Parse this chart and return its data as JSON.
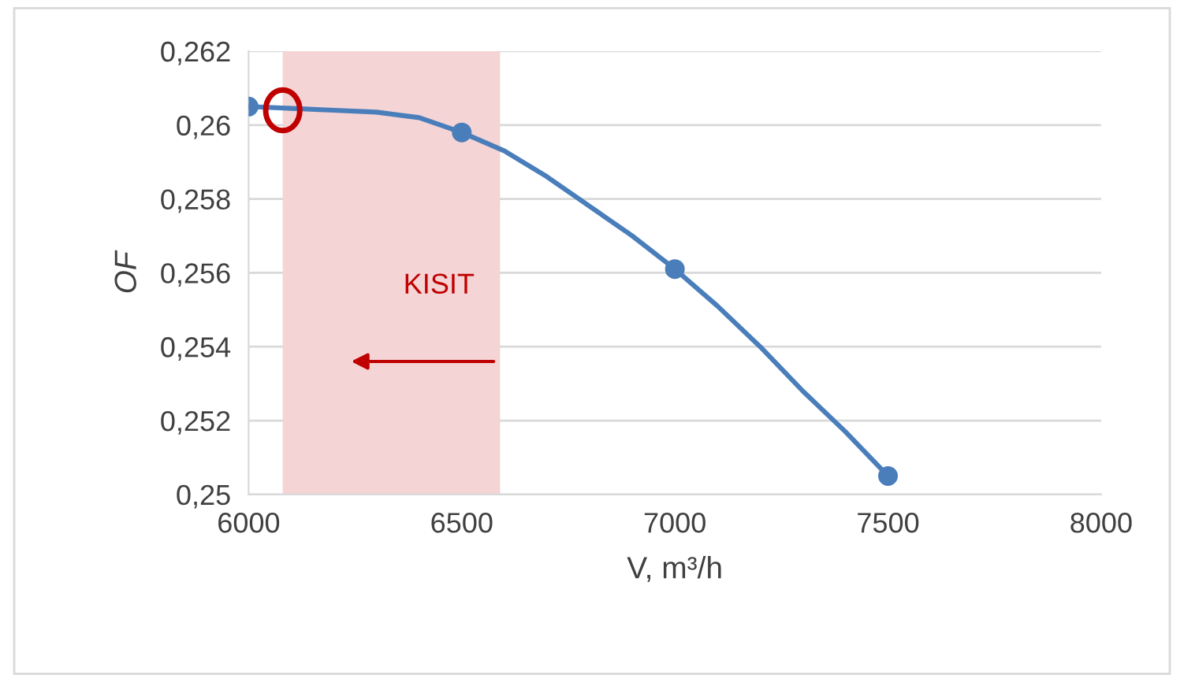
{
  "chart_data": {
    "type": "line",
    "xlabel": "V, m³/h",
    "ylabel": "OF",
    "x": [
      6000,
      6500,
      7000,
      7500
    ],
    "series": [
      {
        "color": "#4a7ebb",
        "x": [
          6000,
          6100,
          6200,
          6300,
          6400,
          6500,
          6600,
          6700,
          6800,
          6900,
          7000,
          7100,
          7200,
          7300,
          7400,
          7500
        ],
        "values": [
          0.2605,
          0.26045,
          0.2604,
          0.26035,
          0.2602,
          0.2598,
          0.2593,
          0.2586,
          0.2578,
          0.257,
          0.2561,
          0.2551,
          0.254,
          0.2528,
          0.2517,
          0.2505
        ]
      },
      {
        "type": "scatter",
        "marker": "circle",
        "color": "#4a7ebb",
        "values": [
          0.2605,
          0.2598,
          0.2561,
          0.2505
        ]
      }
    ],
    "line_style": "solid",
    "grid": "y",
    "xlim": [
      6000,
      8000
    ],
    "xticks": [
      6000,
      6500,
      7000,
      7500,
      8000
    ],
    "ylim": [
      0.25,
      0.262
    ],
    "yticks": [
      {
        "value": 0.25,
        "label": "0,25"
      },
      {
        "value": 0.252,
        "label": "0,252"
      },
      {
        "value": 0.254,
        "label": "0,254"
      },
      {
        "value": 0.256,
        "label": "0,256"
      },
      {
        "value": 0.258,
        "label": "0,258"
      },
      {
        "value": 0.26,
        "label": "0,26"
      },
      {
        "value": 0.262,
        "label": "0,262"
      }
    ],
    "bands": [
      {
        "axis": "x",
        "from": 6080,
        "to": 6590,
        "color": "#f4d4d5"
      }
    ],
    "annotations": [
      "KISIT"
    ]
  }
}
